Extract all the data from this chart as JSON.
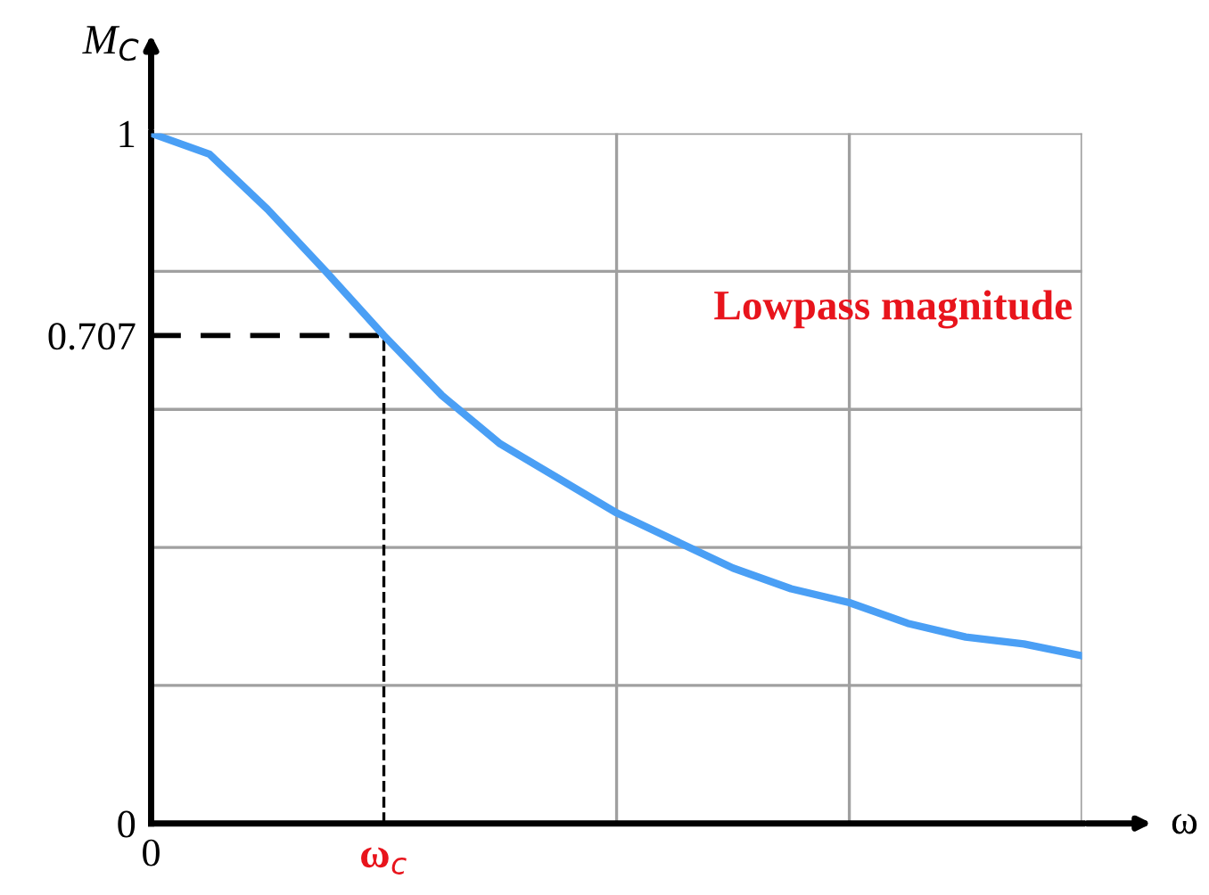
{
  "chart_data": {
    "type": "line",
    "categories": [
      "0",
      null,
      null,
      null,
      "ω$_{c}$",
      null,
      null,
      null,
      null,
      null,
      null,
      null,
      null,
      null,
      null,
      null,
      null
    ],
    "series": [
      {
        "color": "#4a9ff5",
        "values": [
          1,
          0.97,
          0.89,
          0.8,
          0.707,
          0.62,
          0.55,
          0.5,
          0.45,
          0.41,
          0.37,
          0.34,
          0.32,
          0.29,
          0.27,
          0.26,
          0.243
        ]
      }
    ],
    "xlabel": "ω",
    "ylabel": "M$_{C}$",
    "ylim": [
      0,
      1
    ],
    "yticks": [
      {
        "value": 0,
        "label": "0"
      },
      {
        "value": 0.2,
        "label": null
      },
      {
        "value": 0.4,
        "label": null
      },
      {
        "value": 0.6,
        "label": null
      },
      {
        "value": 0.707,
        "label": "0.707"
      },
      {
        "value": 0.8,
        "label": null
      },
      {
        "value": 1,
        "label": "1"
      }
    ],
    "ref_lines": [
      {
        "axis": "y",
        "value": 0.707,
        "line_style": "dashed",
        "color": "#000000"
      },
      {
        "axis": "x",
        "value": "ω$_{c}$",
        "line_style": "dashed",
        "color": "#000000"
      }
    ],
    "annotations": [
      "Lowpass magnitude"
    ],
    "grid": true,
    "marker": "none",
    "line_style": "solid"
  }
}
